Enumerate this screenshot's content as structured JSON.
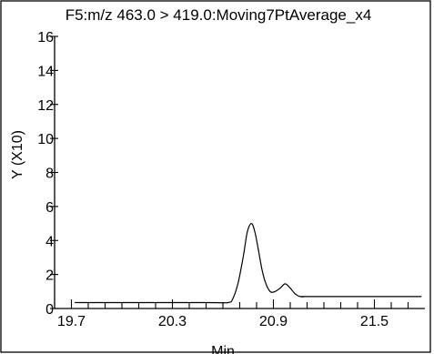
{
  "chart_data": {
    "type": "line",
    "title": "F5:m/z 463.0 > 419.0:Moving7PtAverage_x4",
    "xlabel": "Min",
    "ylabel": "Y (X10)",
    "xlim": [
      19.6,
      21.8
    ],
    "ylim": [
      0,
      16
    ],
    "x_ticks": [
      19.7,
      20.3,
      20.9,
      21.5
    ],
    "x_tick_labels": [
      "19.7",
      "20.3",
      "20.9",
      "21.5"
    ],
    "y_ticks": [
      0,
      2,
      4,
      6,
      8,
      10,
      12,
      14,
      16
    ],
    "y_tick_labels": [
      "0",
      "2",
      "4",
      "6",
      "8",
      "10",
      "12",
      "14",
      "16"
    ],
    "grid": false,
    "series": [
      {
        "x": [
          19.72,
          20.5,
          20.63,
          20.66,
          20.69,
          20.72,
          20.745,
          20.77,
          20.79,
          20.81,
          20.83,
          20.85,
          20.88,
          20.91,
          20.94,
          20.97,
          21.0,
          21.03,
          21.06,
          21.09,
          21.12,
          21.78
        ],
        "y": [
          0.35,
          0.35,
          0.35,
          0.6,
          1.5,
          3.0,
          4.5,
          5.0,
          4.5,
          3.5,
          2.4,
          1.6,
          1.0,
          1.0,
          1.2,
          1.45,
          1.2,
          0.85,
          0.7,
          0.7,
          0.7,
          0.7
        ]
      }
    ]
  }
}
